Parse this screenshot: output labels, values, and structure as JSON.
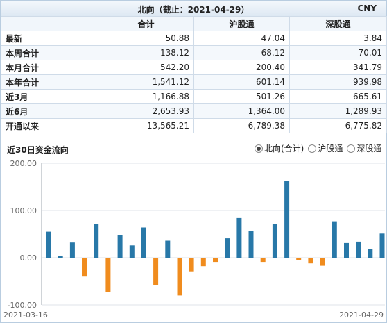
{
  "header": {
    "title": "北向（截止：2021-04-29）",
    "currency": "CNY"
  },
  "table": {
    "columns": [
      "",
      "合计",
      "沪股通",
      "深股通"
    ],
    "rows": [
      {
        "label": "最新",
        "values": [
          "50.88",
          "47.04",
          "3.84"
        ]
      },
      {
        "label": "本周合计",
        "values": [
          "138.12",
          "68.12",
          "70.01"
        ]
      },
      {
        "label": "本月合计",
        "values": [
          "542.20",
          "200.40",
          "341.79"
        ]
      },
      {
        "label": "本年合计",
        "values": [
          "1,541.12",
          "601.14",
          "939.98"
        ]
      },
      {
        "label": "近3月",
        "values": [
          "1,166.88",
          "501.26",
          "665.61"
        ]
      },
      {
        "label": "近6月",
        "values": [
          "2,653.93",
          "1,364.00",
          "1,289.93"
        ]
      },
      {
        "label": "开通以来",
        "values": [
          "13,565.21",
          "6,789.38",
          "6,775.82"
        ]
      }
    ]
  },
  "chart_section": {
    "title": "近30日资金流向",
    "options": [
      {
        "label": "北向(合计)",
        "selected": true
      },
      {
        "label": "沪股通",
        "selected": false
      },
      {
        "label": "深股通",
        "selected": false
      }
    ]
  },
  "chart_data": {
    "type": "bar",
    "x_labels": [
      "2021-03-16",
      "2021-04-29"
    ],
    "ylim": [
      -100,
      200
    ],
    "y_ticks": [
      "200.00",
      "100.00",
      "0.00",
      "-100.00"
    ],
    "values": [
      55,
      4,
      32,
      -40,
      71,
      -72,
      48,
      26,
      64,
      -58,
      36,
      -80,
      -29,
      -18,
      -9,
      41,
      84,
      56,
      -9,
      71,
      163,
      -5,
      -12,
      -17,
      77,
      31,
      34,
      18,
      51
    ],
    "colors": {
      "positive": "#2878a8",
      "negative": "#f08c1e",
      "grid": "#dfe3e8",
      "axis": "#a0a8b0"
    },
    "grid": true
  }
}
